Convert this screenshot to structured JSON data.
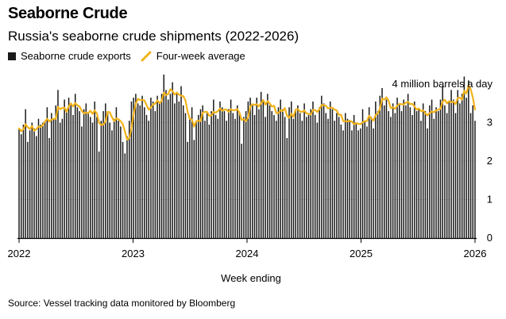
{
  "title": "Seaborne Crude",
  "subtitle": "Russia's seaborne crude shipments (2022-2026)",
  "legend": {
    "bars_label": "Seaborne crude exports",
    "line_label": "Four-week average"
  },
  "source": "Source: Vessel tracking data monitored by Bloomberg",
  "colors": {
    "bar": "#1a1a1a",
    "line": "#f2b31b",
    "text": "#000000"
  },
  "chart_data": {
    "type": "bar",
    "title": "Seaborne Crude",
    "xlabel": "Week ending",
    "ylabel": "million barrels a day",
    "unit_annotation": "4 million barrels a day",
    "x_start": 2022.0,
    "x_end": 2026.0,
    "xlim": [
      2022.0,
      2026.0
    ],
    "ylim": [
      0,
      4.25
    ],
    "y_ticks": [
      0,
      1,
      2,
      3
    ],
    "x_ticks": [
      {
        "value": 2022,
        "label": "2022"
      },
      {
        "value": 2023,
        "label": "2023"
      },
      {
        "value": 2024,
        "label": "2024"
      },
      {
        "value": 2025,
        "label": "2025"
      },
      {
        "value": 2026,
        "label": "2026"
      }
    ],
    "series": [
      {
        "name": "Seaborne crude exports",
        "type": "bar",
        "values": [
          2.85,
          2.7,
          2.95,
          3.35,
          2.5,
          2.8,
          3.0,
          2.85,
          2.65,
          3.1,
          2.95,
          3.0,
          3.05,
          3.4,
          2.6,
          3.25,
          3.1,
          3.45,
          3.85,
          3.0,
          3.1,
          3.6,
          3.35,
          3.65,
          3.45,
          3.2,
          3.75,
          3.4,
          3.3,
          2.9,
          3.35,
          3.5,
          3.25,
          3.15,
          3.0,
          3.55,
          3.15,
          2.25,
          3.05,
          3.3,
          3.5,
          3.25,
          3.0,
          2.8,
          3.1,
          3.4,
          3.05,
          2.9,
          2.5,
          2.2,
          2.65,
          3.05,
          3.55,
          3.65,
          3.75,
          3.5,
          3.45,
          3.7,
          3.4,
          3.2,
          3.05,
          3.65,
          3.55,
          3.3,
          3.7,
          3.5,
          3.75,
          4.25,
          3.85,
          3.6,
          3.75,
          4.05,
          3.5,
          3.8,
          3.55,
          3.95,
          3.45,
          3.25,
          2.5,
          3.15,
          3.4,
          2.55,
          3.05,
          3.2,
          3.35,
          3.45,
          3.05,
          3.25,
          2.95,
          3.3,
          3.6,
          3.2,
          3.1,
          3.55,
          3.4,
          3.3,
          3.05,
          3.35,
          3.6,
          3.25,
          3.1,
          3.45,
          3.25,
          2.45,
          3.15,
          3.3,
          3.55,
          3.65,
          3.45,
          3.2,
          3.65,
          3.35,
          3.8,
          3.55,
          3.15,
          3.75,
          3.45,
          3.3,
          3.2,
          3.05,
          3.4,
          3.6,
          3.35,
          3.15,
          2.6,
          3.4,
          3.55,
          3.1,
          3.3,
          3.45,
          3.25,
          3.05,
          3.5,
          3.15,
          3.2,
          3.35,
          3.55,
          3.2,
          3.0,
          3.4,
          3.7,
          3.5,
          3.25,
          3.1,
          3.55,
          3.35,
          3.05,
          3.25,
          3.15,
          2.95,
          2.8,
          3.25,
          3.1,
          3.05,
          2.8,
          3.2,
          3.0,
          2.8,
          2.85,
          3.35,
          3.05,
          2.9,
          3.4,
          3.15,
          2.85,
          3.55,
          3.3,
          3.7,
          3.9,
          3.45,
          3.6,
          3.3,
          3.15,
          3.5,
          3.25,
          3.65,
          3.5,
          3.3,
          3.6,
          3.45,
          3.75,
          3.4,
          3.2,
          3.55,
          3.3,
          3.35,
          3.05,
          3.5,
          3.3,
          2.85,
          3.45,
          3.6,
          3.1,
          3.4,
          3.3,
          3.6,
          3.95,
          3.45,
          3.25,
          3.55,
          3.85,
          3.6,
          3.25,
          3.85,
          3.5,
          3.75,
          4.2,
          3.65,
          4.1,
          3.25,
          3.45,
          3.05
        ]
      },
      {
        "name": "Four-week average",
        "type": "line",
        "values": [
          2.85,
          2.78,
          2.83,
          2.96,
          2.88,
          2.84,
          2.91,
          2.79,
          2.83,
          2.9,
          2.89,
          2.93,
          3.03,
          3.1,
          3.03,
          3.08,
          3.1,
          3.1,
          3.41,
          3.35,
          3.38,
          3.39,
          3.28,
          3.43,
          3.5,
          3.42,
          3.51,
          3.45,
          3.42,
          3.31,
          3.24,
          3.26,
          3.25,
          3.31,
          3.23,
          3.32,
          3.24,
          3.0,
          2.94,
          2.95,
          3.03,
          3.28,
          3.27,
          3.14,
          3.04,
          3.11,
          3.09,
          3.04,
          2.96,
          2.77,
          2.56,
          2.6,
          2.86,
          3.22,
          3.49,
          3.62,
          3.59,
          3.59,
          3.58,
          3.46,
          3.34,
          3.39,
          3.48,
          3.49,
          3.58,
          3.51,
          3.56,
          3.78,
          3.72,
          3.74,
          3.87,
          3.82,
          3.73,
          3.78,
          3.73,
          3.7,
          3.69,
          3.58,
          3.29,
          3.1,
          3.08,
          2.9,
          3.04,
          3.05,
          3.04,
          3.26,
          3.28,
          3.28,
          3.18,
          3.19,
          3.28,
          3.26,
          3.3,
          3.37,
          3.31,
          3.34,
          3.34,
          3.28,
          3.35,
          3.32,
          3.33,
          3.35,
          3.26,
          3.07,
          3.09,
          3.04,
          3.14,
          3.42,
          3.48,
          3.46,
          3.48,
          3.42,
          3.51,
          3.59,
          3.47,
          3.56,
          3.5,
          3.42,
          3.44,
          3.25,
          3.25,
          3.32,
          3.3,
          3.38,
          3.18,
          3.13,
          3.23,
          3.15,
          3.34,
          3.35,
          3.29,
          3.28,
          3.32,
          3.24,
          3.23,
          3.21,
          3.33,
          3.33,
          3.28,
          3.35,
          3.46,
          3.46,
          3.44,
          3.37,
          3.39,
          3.39,
          3.34,
          3.32,
          3.2,
          3.21,
          3.04,
          3.04,
          3.03,
          3.05,
          3.03,
          2.96,
          2.99,
          2.97,
          2.96,
          3.01,
          3.04,
          3.04,
          3.18,
          3.11,
          3.05,
          3.2,
          3.24,
          3.36,
          3.62,
          3.6,
          3.66,
          3.57,
          3.38,
          3.4,
          3.36,
          3.44,
          3.49,
          3.48,
          3.47,
          3.52,
          3.54,
          3.48,
          3.49,
          3.42,
          3.34,
          3.37,
          3.3,
          3.32,
          3.24,
          3.19,
          3.25,
          3.29,
          3.27,
          3.32,
          3.34,
          3.36,
          3.54,
          3.6,
          3.5,
          3.56,
          3.53,
          3.55,
          3.48,
          3.64,
          3.65,
          3.6,
          3.83,
          3.76,
          3.97,
          3.87,
          3.65,
          3.34
        ]
      }
    ]
  }
}
